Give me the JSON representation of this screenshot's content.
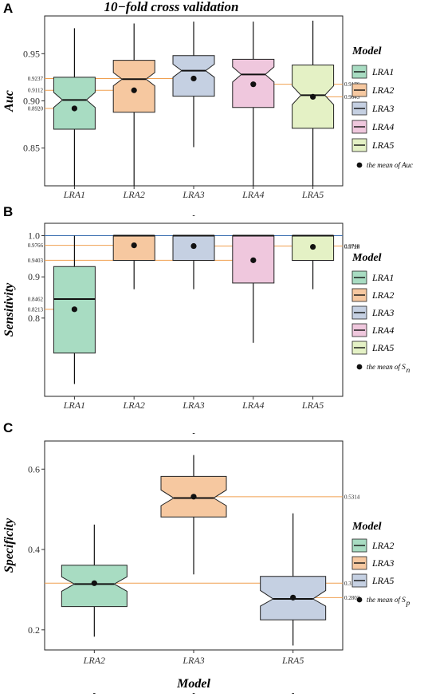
{
  "figure_title": "10−fold cross validation",
  "chart_data": [
    {
      "panel": "A",
      "type": "boxplot",
      "notched": true,
      "ylabel": "Auc",
      "xlabel": "",
      "ylim": [
        0.81,
        0.99
      ],
      "yticks": [
        0.85,
        0.9,
        0.95
      ],
      "ytick_labels": [
        "0.85",
        "0.90",
        "0.95"
      ],
      "top_tick_label": "",
      "categories": [
        "LRA1",
        "LRA2",
        "LRA3",
        "LRA4",
        "LRA5"
      ],
      "boxes": [
        {
          "name": "LRA1",
          "min": 0.81,
          "q1": 0.87,
          "median": 0.901,
          "q3": 0.925,
          "max": 0.977,
          "mean": 0.892,
          "notch": [
            0.893,
            0.909
          ],
          "color": "#a8dcc2",
          "mean_label": "0.8920",
          "mean_label_side": "left"
        },
        {
          "name": "LRA2",
          "min": 0.81,
          "q1": 0.888,
          "median": 0.923,
          "q3": 0.943,
          "max": 0.982,
          "mean": 0.9112,
          "notch": [
            0.916,
            0.93
          ],
          "color": "#f6c8a0",
          "mean_label": "0.9112",
          "mean_label_side": "left"
        },
        {
          "name": "LRA3",
          "min": 0.851,
          "q1": 0.905,
          "median": 0.932,
          "q3": 0.948,
          "max": 0.984,
          "mean": 0.9237,
          "notch": [
            0.925,
            0.939
          ],
          "color": "#c5d0e2",
          "mean_label": "0.9237",
          "mean_label_side": "left"
        },
        {
          "name": "LRA4",
          "min": 0.81,
          "q1": 0.893,
          "median": 0.928,
          "q3": 0.944,
          "max": 0.984,
          "mean": 0.9176,
          "notch": [
            0.92,
            0.936
          ],
          "color": "#efc7dd",
          "mean_label": "0.9176",
          "mean_label_side": "right"
        },
        {
          "name": "LRA5",
          "min": 0.81,
          "q1": 0.871,
          "median": 0.906,
          "q3": 0.938,
          "max": 0.985,
          "mean": 0.9043,
          "notch": [
            0.896,
            0.916
          ],
          "color": "#e4f1c5",
          "mean_label": "0.9043",
          "mean_label_side": "right"
        }
      ],
      "reference_lines": [
        {
          "y": 0.9237,
          "color": "#f0a050",
          "from": 0,
          "to": 2
        },
        {
          "y": 0.9112,
          "color": "#f0a050",
          "from": 0,
          "to": 1
        },
        {
          "y": 0.892,
          "color": "#f0a050",
          "from": 0,
          "to": 0
        },
        {
          "y": 0.9176,
          "color": "#f0a050",
          "from": 3,
          "to": 5
        },
        {
          "y": 0.9043,
          "color": "#f0a050",
          "from": 4,
          "to": 5
        }
      ],
      "legend": {
        "title": "Model",
        "items": [
          {
            "label": "LRA1",
            "color": "#a8dcc2"
          },
          {
            "label": "LRA2",
            "color": "#f6c8a0"
          },
          {
            "label": "LRA3",
            "color": "#c5d0e2"
          },
          {
            "label": "LRA4",
            "color": "#efc7dd"
          },
          {
            "label": "LRA5",
            "color": "#e4f1c5"
          }
        ],
        "mean_label": "the mean of Auc",
        "mean_sub": ""
      }
    },
    {
      "panel": "B",
      "type": "boxplot",
      "notched": false,
      "ylabel": "Sensitivity",
      "xlabel": "",
      "ylim": [
        0.61,
        1.03
      ],
      "yticks": [
        0.8,
        0.9,
        1.0
      ],
      "ytick_labels": [
        "0.8",
        "0.9",
        "1.0"
      ],
      "panel_top_text": "-",
      "categories": [
        "LRA1",
        "LRA2",
        "LRA3",
        "LRA4",
        "LRA5"
      ],
      "boxes": [
        {
          "name": "LRA1",
          "min": 0.64,
          "q1": 0.715,
          "median": 0.8462,
          "q3": 0.925,
          "max": 1.0,
          "mean": 0.8213,
          "color": "#a8dcc2",
          "mean_label": "0.8213",
          "mean_label_side": "left"
        },
        {
          "name": "LRA2",
          "min": 0.87,
          "q1": 0.94,
          "median": 1.0,
          "q3": 1.0,
          "max": 1.0,
          "mean": 0.9766,
          "color": "#f6c8a0",
          "mean_label": "0.9766",
          "mean_label_side": "left"
        },
        {
          "name": "LRA3",
          "min": 0.87,
          "q1": 0.94,
          "median": 1.0,
          "q3": 1.0,
          "max": 1.0,
          "mean": 0.9748,
          "color": "#c5d0e2",
          "mean_label": "0.9748",
          "mean_label_side": "right"
        },
        {
          "name": "LRA4",
          "min": 0.74,
          "q1": 0.885,
          "median": 1.0,
          "q3": 1.0,
          "max": 1.0,
          "mean": 0.9403,
          "color": "#efc7dd",
          "mean_label": "0.9403",
          "mean_label_side": "left"
        },
        {
          "name": "LRA5",
          "min": 0.87,
          "q1": 0.94,
          "median": 1.0,
          "q3": 1.0,
          "max": 1.0,
          "mean": 0.9728,
          "color": "#e4f1c5",
          "mean_label": "0.9728",
          "mean_label_side": "right"
        }
      ],
      "extra_left_label": {
        "value": 0.8462,
        "label": "0.8462"
      },
      "reference_lines": [
        {
          "y": 1.0,
          "color": "#3a6fb0",
          "from": 0,
          "to": 5
        },
        {
          "y": 0.9766,
          "color": "#f0a050",
          "from": 0,
          "to": 1
        },
        {
          "y": 0.9748,
          "color": "#f0a050",
          "from": 2,
          "to": 5
        },
        {
          "y": 0.9403,
          "color": "#f0a050",
          "from": 0,
          "to": 3
        },
        {
          "y": 0.8213,
          "color": "#f0a050",
          "from": 0,
          "to": 0
        }
      ],
      "legend": {
        "title": "Model",
        "items": [
          {
            "label": "LRA1",
            "color": "#a8dcc2"
          },
          {
            "label": "LRA2",
            "color": "#f6c8a0"
          },
          {
            "label": "LRA3",
            "color": "#c5d0e2"
          },
          {
            "label": "LRA4",
            "color": "#efc7dd"
          },
          {
            "label": "LRA5",
            "color": "#e4f1c5"
          }
        ],
        "mean_label": "the mean of S",
        "mean_sub": "n"
      }
    },
    {
      "panel": "C",
      "type": "boxplot",
      "notched": true,
      "ylabel": "Specificity",
      "xlabel": "Model",
      "ylim": [
        0.15,
        0.67
      ],
      "yticks": [
        0.2,
        0.4,
        0.6
      ],
      "ytick_labels": [
        "0.2",
        "0.4",
        "0.6"
      ],
      "panel_top_text": "-",
      "categories": [
        "LRA2",
        "LRA3",
        "LRA5"
      ],
      "boxes": [
        {
          "name": "LRA2",
          "min": 0.183,
          "q1": 0.258,
          "median": 0.314,
          "q3": 0.361,
          "max": 0.462,
          "mean": 0.3161,
          "notch": [
            0.296,
            0.332
          ],
          "color": "#a8dcc2",
          "mean_label": "0.3161",
          "mean_label_side": "right"
        },
        {
          "name": "LRA3",
          "min": 0.338,
          "q1": 0.481,
          "median": 0.528,
          "q3": 0.582,
          "max": 0.635,
          "mean": 0.5314,
          "notch": [
            0.509,
            0.548
          ],
          "color": "#f6c8a0",
          "mean_label": "0.5314",
          "mean_label_side": "right"
        },
        {
          "name": "LRA5",
          "min": 0.161,
          "q1": 0.225,
          "median": 0.277,
          "q3": 0.333,
          "max": 0.49,
          "mean": 0.2803,
          "notch": [
            0.259,
            0.298
          ],
          "color": "#c5d0e2",
          "mean_label": "0.2803",
          "mean_label_side": "right"
        }
      ],
      "reference_lines": [
        {
          "y": 0.5314,
          "color": "#f0a050",
          "from": 1,
          "to": 3
        },
        {
          "y": 0.3161,
          "color": "#f0a050",
          "from": 0,
          "to": 3
        },
        {
          "y": 0.2803,
          "color": "#f0a050",
          "from": 2,
          "to": 3
        }
      ],
      "legend": {
        "title": "Model",
        "items": [
          {
            "label": "LRA2",
            "color": "#a8dcc2"
          },
          {
            "label": "LRA3",
            "color": "#f6c8a0"
          },
          {
            "label": "LRA5",
            "color": "#c5d0e2"
          }
        ],
        "mean_label": "the mean of S",
        "mean_sub": "p"
      }
    }
  ],
  "footer_ticks": [
    "-",
    "-",
    "-"
  ]
}
